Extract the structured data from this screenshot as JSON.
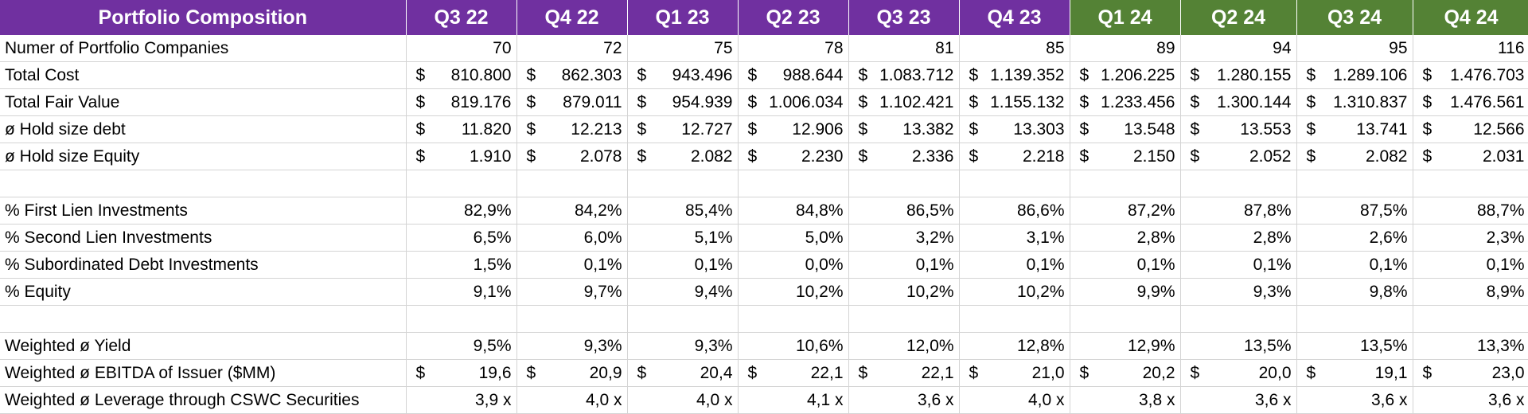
{
  "header": {
    "title": "Portfolio Composition",
    "quarters": [
      {
        "label": "Q3 22",
        "color": "#7030a0"
      },
      {
        "label": "Q4 22",
        "color": "#7030a0"
      },
      {
        "label": "Q1 23",
        "color": "#7030a0"
      },
      {
        "label": "Q2 23",
        "color": "#7030a0"
      },
      {
        "label": "Q3 23",
        "color": "#7030a0"
      },
      {
        "label": "Q4 23",
        "color": "#7030a0"
      },
      {
        "label": "Q1 24",
        "color": "#548235"
      },
      {
        "label": "Q2 24",
        "color": "#548235"
      },
      {
        "label": "Q3 24",
        "color": "#548235"
      },
      {
        "label": "Q4 24",
        "color": "#548235"
      }
    ]
  },
  "rows": [
    {
      "label": "Numer of Portfolio Companies",
      "currency": "",
      "values": [
        "70",
        "72",
        "75",
        "78",
        "81",
        "85",
        "89",
        "94",
        "95",
        "116"
      ]
    },
    {
      "label": "Total Cost",
      "currency": "$",
      "values": [
        "810.800",
        "862.303",
        "943.496",
        "988.644",
        "1.083.712",
        "1.139.352",
        "1.206.225",
        "1.280.155",
        "1.289.106",
        "1.476.703"
      ]
    },
    {
      "label": "Total Fair Value",
      "currency": "$",
      "values": [
        "819.176",
        "879.011",
        "954.939",
        "1.006.034",
        "1.102.421",
        "1.155.132",
        "1.233.456",
        "1.300.144",
        "1.310.837",
        "1.476.561"
      ]
    },
    {
      "label": "ø Hold size debt",
      "currency": "$",
      "values": [
        "11.820",
        "12.213",
        "12.727",
        "12.906",
        "13.382",
        "13.303",
        "13.548",
        "13.553",
        "13.741",
        "12.566"
      ]
    },
    {
      "label": "ø Hold size Equity",
      "currency": "$",
      "values": [
        "1.910",
        "2.078",
        "2.082",
        "2.230",
        "2.336",
        "2.218",
        "2.150",
        "2.052",
        "2.082",
        "2.031"
      ]
    },
    {
      "label": "",
      "currency": "",
      "values": [
        "",
        "",
        "",
        "",
        "",
        "",
        "",
        "",
        "",
        ""
      ]
    },
    {
      "label": "% First Lien Investments",
      "currency": "",
      "values": [
        "82,9%",
        "84,2%",
        "85,4%",
        "84,8%",
        "86,5%",
        "86,6%",
        "87,2%",
        "87,8%",
        "87,5%",
        "88,7%"
      ]
    },
    {
      "label": "% Second Lien Investments",
      "currency": "",
      "values": [
        "6,5%",
        "6,0%",
        "5,1%",
        "5,0%",
        "3,2%",
        "3,1%",
        "2,8%",
        "2,8%",
        "2,6%",
        "2,3%"
      ]
    },
    {
      "label": "% Subordinated Debt Investments",
      "currency": "",
      "values": [
        "1,5%",
        "0,1%",
        "0,1%",
        "0,0%",
        "0,1%",
        "0,1%",
        "0,1%",
        "0,1%",
        "0,1%",
        "0,1%"
      ]
    },
    {
      "label": "% Equity",
      "currency": "",
      "values": [
        "9,1%",
        "9,7%",
        "9,4%",
        "10,2%",
        "10,2%",
        "10,2%",
        "9,9%",
        "9,3%",
        "9,8%",
        "8,9%"
      ]
    },
    {
      "label": "",
      "currency": "",
      "values": [
        "",
        "",
        "",
        "",
        "",
        "",
        "",
        "",
        "",
        ""
      ]
    },
    {
      "label": "Weighted ø Yield",
      "currency": "",
      "values": [
        "9,5%",
        "9,3%",
        "9,3%",
        "10,6%",
        "12,0%",
        "12,8%",
        "12,9%",
        "13,5%",
        "13,5%",
        "13,3%"
      ]
    },
    {
      "label": "Weighted ø EBITDA of Issuer ($MM)",
      "currency": "$",
      "values": [
        "19,6",
        "20,9",
        "20,4",
        "22,1",
        "22,1",
        "21,0",
        "20,2",
        "20,0",
        "19,1",
        "23,0"
      ]
    },
    {
      "label": "Weighted ø Leverage through CSWC Securities",
      "currency": "",
      "values": [
        "3,9 x",
        "4,0 x",
        "4,0 x",
        "4,1 x",
        "3,6 x",
        "4,0 x",
        "3,8 x",
        "3,6 x",
        "3,6 x",
        "3,6 x"
      ]
    }
  ]
}
